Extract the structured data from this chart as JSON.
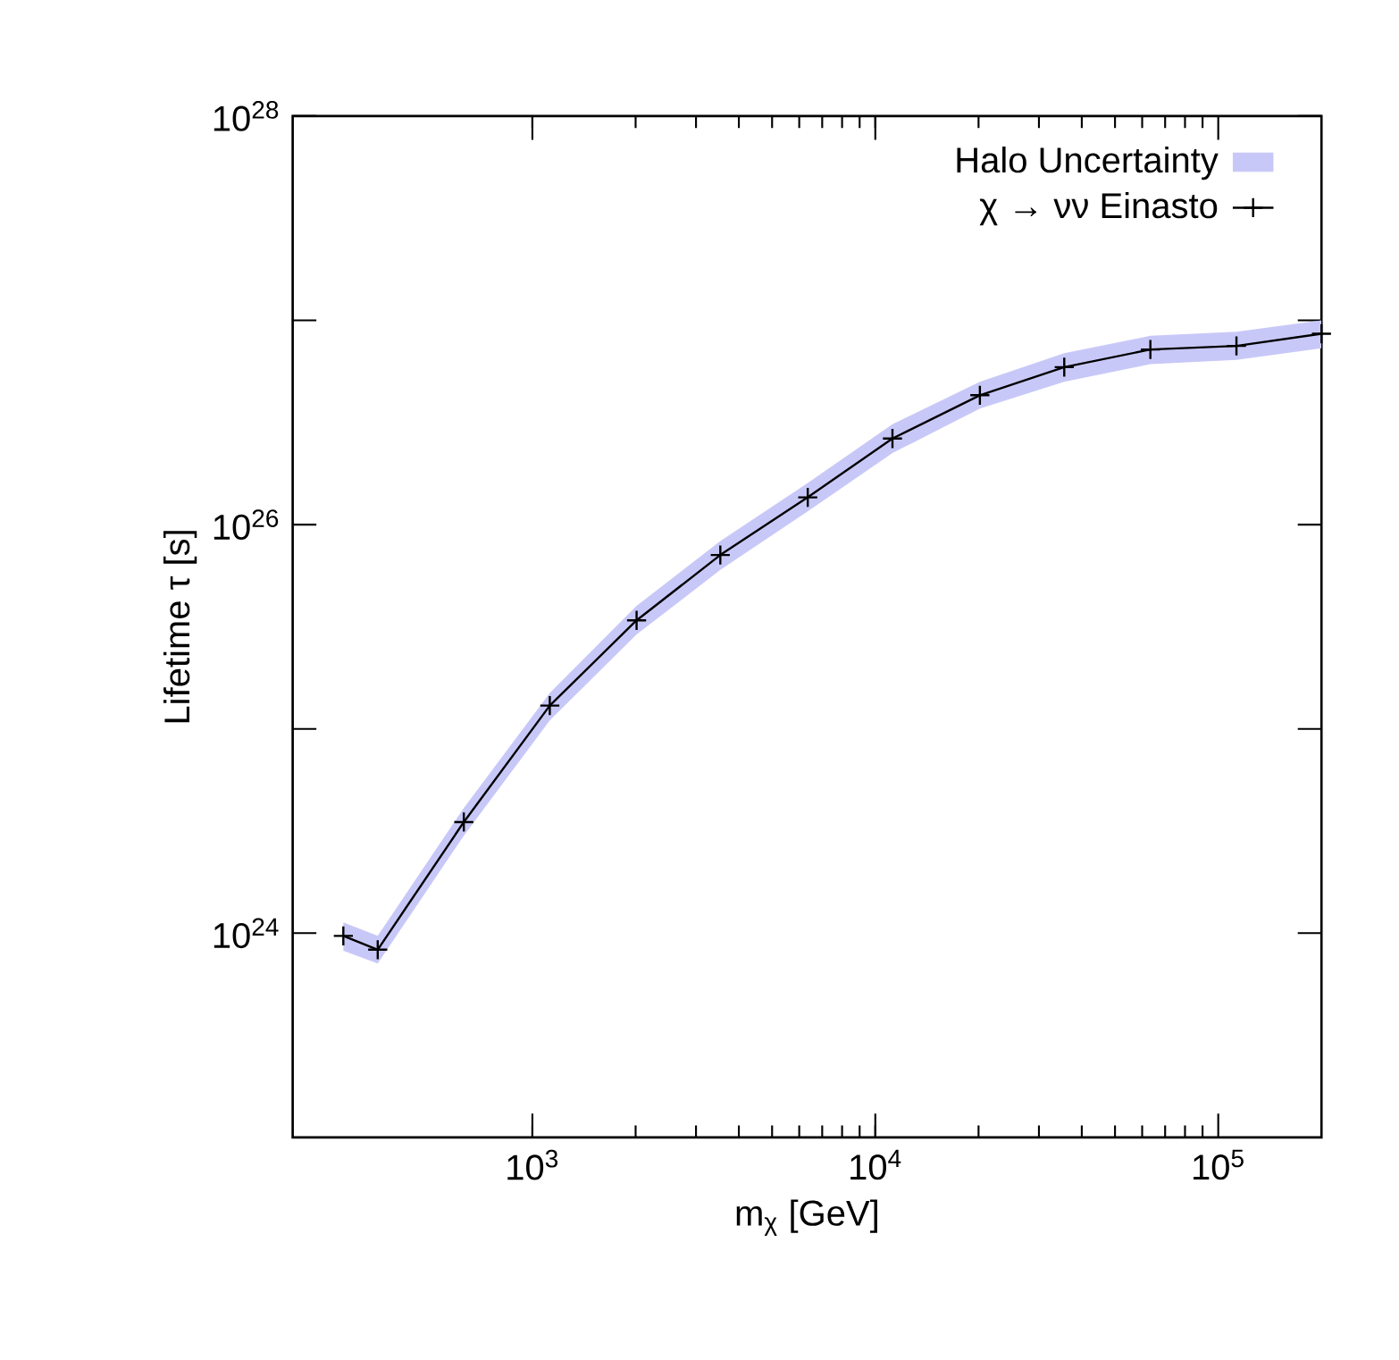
{
  "chart_data": {
    "type": "line",
    "xlabel": "m$_{χ}$ [GeV]",
    "ylabel": "Lifetime τ [s]",
    "log": "xy",
    "legend": "top right",
    "xlim": [
      200,
      200000
    ],
    "ylim": [
      1e+23,
      1e+28
    ],
    "xticks": [
      {
        "value": 1000,
        "label": "10$^{3}$"
      },
      {
        "value": 10000,
        "label": "10$^{4}$"
      },
      {
        "value": 100000,
        "label": "10$^{5}$"
      }
    ],
    "yticks": [
      {
        "value": 1e+24,
        "label": "10$^{24}$"
      },
      {
        "value": 1e+25,
        "label": null
      },
      {
        "value": 1e+26,
        "label": "10$^{26}$"
      },
      {
        "value": 1e+27,
        "label": null
      },
      {
        "value": 1e+28,
        "label": "10$^{28}$"
      }
    ],
    "annotations": [
      "Halo Uncertainty"
    ],
    "series": [
      {
        "name": "χ → νν Einasto",
        "color": "#000000",
        "marker": "cross",
        "line_style": "solid",
        "x": [
          281,
          354,
          631,
          1124,
          2013,
          3532,
          6353,
          11220,
          20180,
          35560,
          63400,
          113000,
          200000
        ],
        "values": [
          9.7e+23,
          8.3e+23,
          3.5e+24,
          1.3e+25,
          3.4e+25,
          7.1e+25,
          1.36e+26,
          2.64e+26,
          4.3e+26,
          5.9e+26,
          7.2e+26,
          7.5e+26,
          8.6e+26
        ],
        "lower": [
          8.2e+23,
          7.1e+23,
          3e+24,
          1.1e+25,
          2.9e+25,
          6e+25,
          1.16e+26,
          2.24e+26,
          3.7e+26,
          5e+26,
          6.1e+26,
          6.4e+26,
          7.3e+26
        ],
        "upper": [
          1.13e+24,
          9.7e+23,
          4.1e+24,
          1.5e+25,
          4e+25,
          8.3e+25,
          1.6e+26,
          3.1e+26,
          5e+26,
          6.9e+26,
          8.4e+26,
          8.8e+26,
          1e+27
        ]
      }
    ]
  }
}
